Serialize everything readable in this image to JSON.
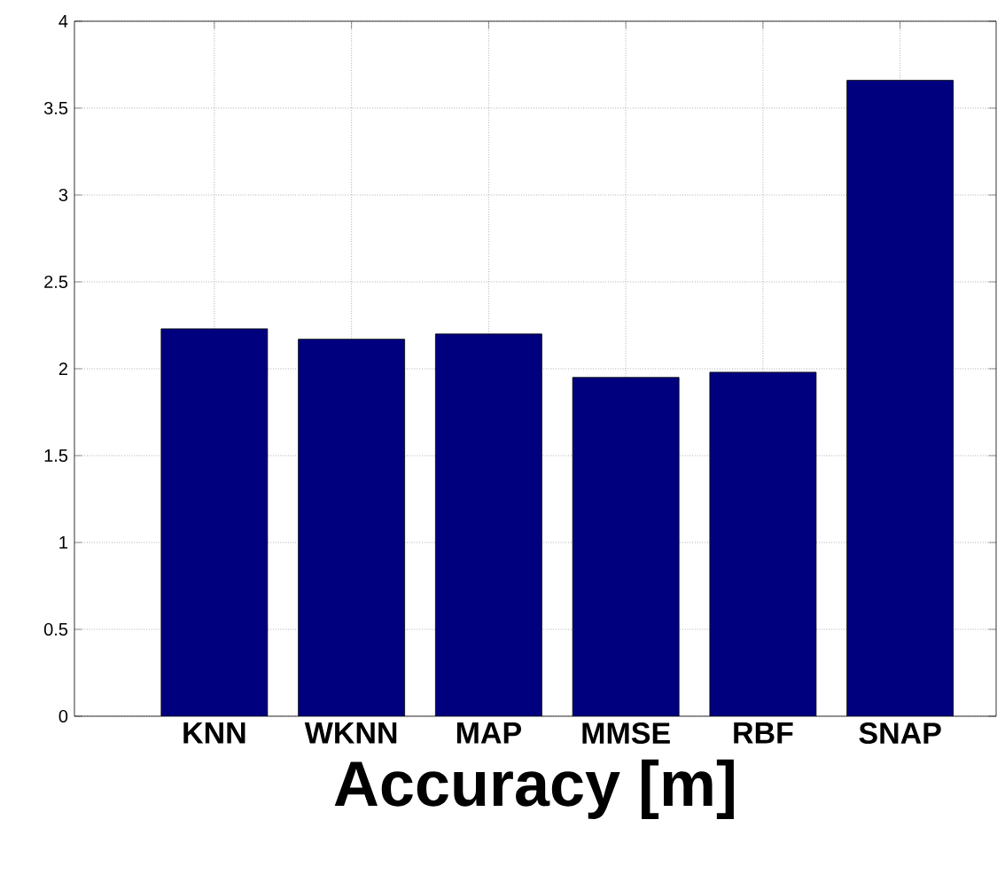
{
  "chart_data": {
    "type": "bar",
    "xlabel": "Accuracy [m]",
    "categories": [
      "KNN",
      "WKNN",
      "MAP",
      "MMSE",
      "RBF",
      "SNAP"
    ],
    "values": [
      2.23,
      2.17,
      2.2,
      1.95,
      1.98,
      3.66
    ],
    "color": "#00007f",
    "ylim": [
      0,
      4
    ],
    "yticks": [
      0,
      0.5,
      1,
      1.5,
      2,
      2.5,
      3,
      3.5,
      4
    ],
    "grid": true
  }
}
